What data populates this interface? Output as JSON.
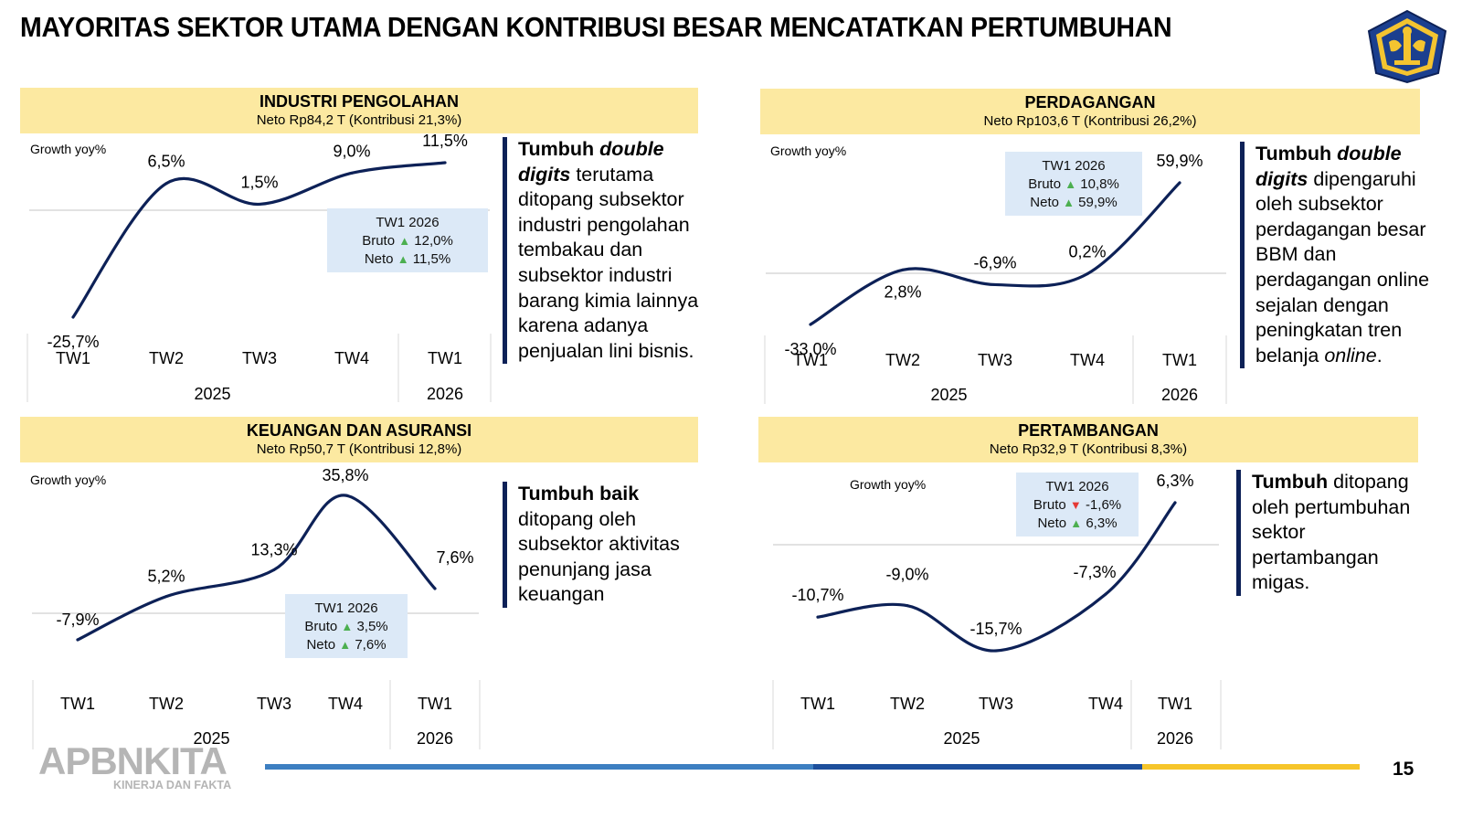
{
  "page": {
    "title": "MAYORITAS SEKTOR UTAMA DENGAN KONTRIBUSI BESAR MENCATATKAN PERTUMBUHAN",
    "page_number": "15",
    "brand": "APBNKITA",
    "brand_tagline": "KINERJA DAN FAKTA",
    "colors": {
      "header_bg": "#fce9a1",
      "line": "#0d2157",
      "callout_bg": "#dce9f7",
      "up": "#4caf50",
      "down": "#e53935"
    }
  },
  "chart_data": [
    {
      "type": "line",
      "title": "INDUSTRI PENGOLAHAN",
      "subtitle": "Neto Rp84,2 T (Kontribusi 21,3%)",
      "ylabel": "Growth yoy%",
      "categories": [
        "TW1",
        "TW2",
        "TW3",
        "TW4",
        "TW1"
      ],
      "years": [
        {
          "label": "2025",
          "span": [
            0,
            3
          ]
        },
        {
          "label": "2026",
          "span": [
            4,
            4
          ]
        }
      ],
      "values": [
        -25.7,
        6.5,
        1.5,
        9.0,
        11.5
      ],
      "value_labels": [
        "-25,7%",
        "6,5%",
        "1,5%",
        "9,0%",
        "11,5%"
      ],
      "callout": {
        "title": "TW1 2026",
        "bruto_label": "Bruto",
        "bruto_dir": "up",
        "bruto_value": "12,0%",
        "neto_label": "Neto",
        "neto_dir": "up",
        "neto_value": "11,5%"
      },
      "note": {
        "bold": "Tumbuh",
        "bold_italic": "double digits",
        "italic_tail": "",
        "text": "terutama ditopang subsektor industri pengolahan tembakau dan subsektor industri barang kimia lainnya karena adanya penjualan lini bisnis.",
        "end": ""
      }
    },
    {
      "type": "line",
      "title": "PERDAGANGAN",
      "subtitle": "Neto Rp103,6 T (Kontribusi 26,2%)",
      "ylabel": "Growth yoy%",
      "categories": [
        "TW1",
        "TW2",
        "TW3",
        "TW4",
        "TW1"
      ],
      "years": [
        {
          "label": "2025",
          "span": [
            0,
            3
          ]
        },
        {
          "label": "2026",
          "span": [
            4,
            4
          ]
        }
      ],
      "values": [
        -33.0,
        2.8,
        -6.9,
        0.2,
        59.9
      ],
      "value_labels": [
        "-33,0%",
        "2,8%",
        "-6,9%",
        "0,2%",
        "59,9%"
      ],
      "callout": {
        "title": "TW1 2026",
        "bruto_label": "Bruto",
        "bruto_dir": "up",
        "bruto_value": "10,8%",
        "neto_label": "Neto",
        "neto_dir": "up",
        "neto_value": "59,9%"
      },
      "note": {
        "bold": "Tumbuh",
        "bold_italic": "double digits",
        "text": "dipengaruhi oleh subsektor perdagangan besar BBM dan perdagangan online sejalan dengan peningkatan tren belanja",
        "italic_tail": "online",
        "end": "."
      }
    },
    {
      "type": "line",
      "title": "KEUANGAN DAN ASURANSI",
      "subtitle": "Neto Rp50,7 T (Kontribusi 12,8%)",
      "ylabel": "Growth yoy%",
      "categories": [
        "TW1",
        "TW2",
        "TW3",
        "TW4",
        "TW1"
      ],
      "years": [
        {
          "label": "2025",
          "span": [
            0,
            3
          ]
        },
        {
          "label": "2026",
          "span": [
            4,
            4
          ]
        }
      ],
      "values": [
        -7.9,
        5.2,
        13.3,
        35.8,
        7.6
      ],
      "value_labels": [
        "-7,9%",
        "5,2%",
        "13,3%",
        "35,8%",
        "7,6%"
      ],
      "callout": {
        "title": "TW1 2026",
        "bruto_label": "Bruto",
        "bruto_dir": "up",
        "bruto_value": "3,5%",
        "neto_label": "Neto",
        "neto_dir": "up",
        "neto_value": "7,6%"
      },
      "note": {
        "bold": "Tumbuh baik",
        "bold_italic": "",
        "text": "ditopang oleh subsektor aktivitas penunjang jasa keuangan",
        "italic_tail": "",
        "end": ""
      }
    },
    {
      "type": "line",
      "title": "PERTAMBANGAN",
      "subtitle": "Neto Rp32,9 T (Kontribusi 8,3%)",
      "ylabel": "Growth yoy%",
      "categories": [
        "TW1",
        "TW2",
        "TW3",
        "TW4",
        "TW1"
      ],
      "years": [
        {
          "label": "2025",
          "span": [
            0,
            3
          ]
        },
        {
          "label": "2026",
          "span": [
            4,
            4
          ]
        }
      ],
      "values": [
        -10.7,
        -9.0,
        -15.7,
        -7.3,
        6.3
      ],
      "value_labels": [
        "-10,7%",
        "-9,0%",
        "-15,7%",
        "-7,3%",
        "6,3%"
      ],
      "callout": {
        "title": "TW1 2026",
        "bruto_label": "Bruto",
        "bruto_dir": "down",
        "bruto_value": "-1,6%",
        "neto_label": "Neto",
        "neto_dir": "up",
        "neto_value": "6,3%"
      },
      "note": {
        "bold": "Tumbuh",
        "bold_italic": "",
        "text": "ditopang oleh pertumbuhan sektor pertambangan migas.",
        "italic_tail": "",
        "end": ""
      }
    }
  ]
}
